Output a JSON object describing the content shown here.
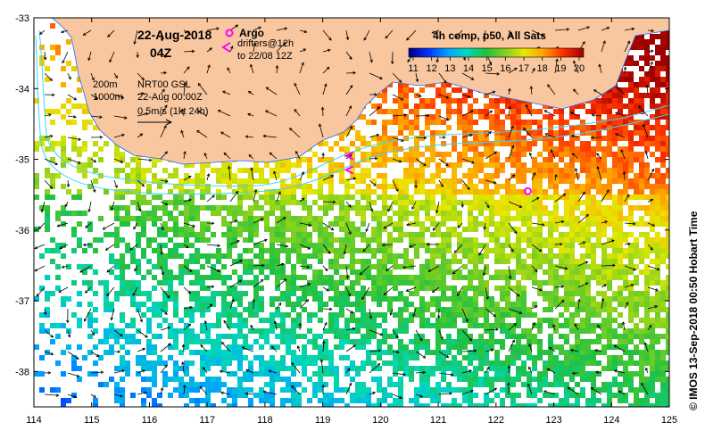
{
  "map": {
    "date_label": "22-Aug-2018",
    "time_label": "04Z",
    "argo_label": "Argo",
    "drifters_label": "drifters@12h",
    "drifters_to_label": "to 22/08 12Z",
    "isobath_200": "200m",
    "isobath_1000": "1000m",
    "product_label": "NRT00 GSL",
    "product_time": "22-Aug 00:00Z",
    "vector_scale_label": "0.5m/s (1kt 24h)",
    "colorbar_title": "4h comp, p50, All Sats",
    "colorbar_ticks": [
      "11",
      "12",
      "13",
      "14",
      "15",
      "16",
      "17",
      "18",
      "19",
      "20"
    ],
    "side_credit": "© IMOS 13-Sep-2018 00:50 Hobart Time",
    "x_ticks": [
      "114",
      "115",
      "116",
      "117",
      "118",
      "119",
      "120",
      "121",
      "122",
      "123",
      "124",
      "125"
    ],
    "y_ticks": [
      "-33",
      "-34",
      "-35",
      "-36",
      "-37",
      "-38"
    ],
    "lon_range": [
      114,
      125
    ],
    "lat_range": [
      -38.5,
      -33
    ],
    "argo_float": {
      "lon": 122.55,
      "lat": -35.45
    },
    "drifter_positions": [
      {
        "lon": 119.45,
        "lat": -34.95
      },
      {
        "lon": 119.45,
        "lat": -35.15
      }
    ],
    "colors": {
      "land": "#f9c79f",
      "coast": "#1b6bff",
      "isobath": "#3dd6ff",
      "argo": "#ff00ff",
      "drifter": "#ff00ff",
      "text": "#000000"
    }
  }
}
